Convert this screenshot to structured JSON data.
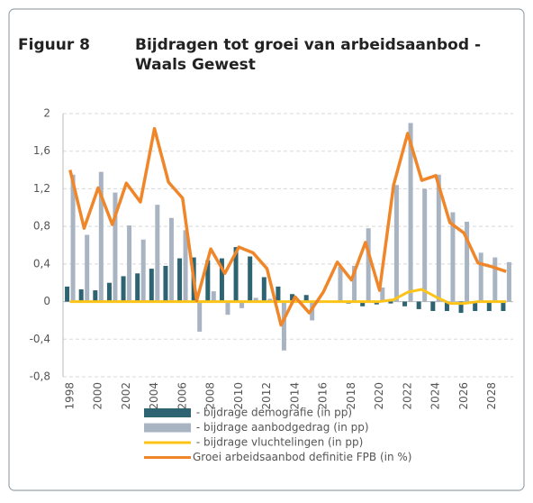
{
  "chart_data": {
    "type": "combo",
    "figure_label": "Figuur 8",
    "title": [
      "Bijdragen tot groei van arbeidsaanbod -",
      "Waals Gewest"
    ],
    "categories": [
      "1998",
      null,
      "2000",
      null,
      "2002",
      null,
      "2004",
      null,
      "2006",
      null,
      "2008",
      null,
      "2010",
      null,
      "2012",
      null,
      "2014",
      null,
      "2016",
      null,
      "2018",
      null,
      "2020",
      null,
      "2022",
      null,
      "2024",
      null,
      "2026",
      null,
      "2028",
      null
    ],
    "ylim": [
      -0.8,
      2
    ],
    "yticks": [
      {
        "value": -0.8,
        "label": "-0,8"
      },
      {
        "value": -0.4,
        "label": "-0,4"
      },
      0,
      {
        "value": 0.4,
        "label": "0,4"
      },
      {
        "value": 0.8,
        "label": "0,8"
      },
      {
        "value": 1.2,
        "label": "1,2"
      },
      {
        "value": 1.6,
        "label": "1,6"
      },
      2
    ],
    "grid": true,
    "series": [
      {
        "name": " - bijdrage demografie (in pp)",
        "type": "bar",
        "color": "#2e6471",
        "values": [
          0.16,
          0.13,
          0.12,
          0.2,
          0.27,
          0.3,
          0.35,
          0.38,
          0.46,
          0.47,
          0.44,
          0.46,
          0.58,
          0.48,
          0.26,
          0.16,
          0.08,
          0.07,
          0.0,
          0.0,
          -0.02,
          -0.05,
          -0.03,
          -0.02,
          -0.05,
          -0.08,
          -0.1,
          -0.1,
          -0.12,
          -0.1,
          -0.1,
          -0.1
        ]
      },
      {
        "name": " - bijdrage aanbodgedrag (in pp)",
        "type": "bar",
        "color": "#a9b4c2",
        "values": [
          1.35,
          0.71,
          1.38,
          1.16,
          0.81,
          0.66,
          1.03,
          0.89,
          0.76,
          -0.32,
          0.11,
          -0.14,
          -0.07,
          0.04,
          0.03,
          -0.52,
          0.0,
          -0.2,
          0.0,
          0.37,
          0.38,
          0.78,
          0.15,
          1.24,
          1.9,
          1.2,
          1.35,
          0.95,
          0.85,
          0.52,
          0.47,
          0.42
        ]
      },
      {
        "name": " - bijdrage vluchtelingen (in pp)",
        "type": "line",
        "color": "#fcc419",
        "values": [
          0,
          0,
          0,
          0,
          0,
          0,
          0,
          0,
          0,
          0,
          0,
          0,
          0,
          0,
          0,
          0,
          0,
          0,
          0,
          0,
          0,
          0,
          0,
          0.02,
          0.1,
          0.13,
          0.05,
          -0.02,
          -0.02,
          0,
          0,
          0
        ]
      },
      {
        "name": "Groei arbeidsaanbod definitie FPB (in %)",
        "type": "line",
        "color": "#f0862a",
        "values": [
          1.4,
          0.78,
          1.21,
          0.82,
          1.26,
          1.06,
          1.84,
          1.27,
          1.1,
          0.01,
          0.56,
          0.3,
          0.58,
          0.52,
          0.35,
          -0.25,
          0.05,
          -0.12,
          0.1,
          0.42,
          0.23,
          0.63,
          0.12,
          1.24,
          1.79,
          1.29,
          1.34,
          0.84,
          0.73,
          0.41,
          0.37,
          0.32
        ]
      }
    ]
  }
}
